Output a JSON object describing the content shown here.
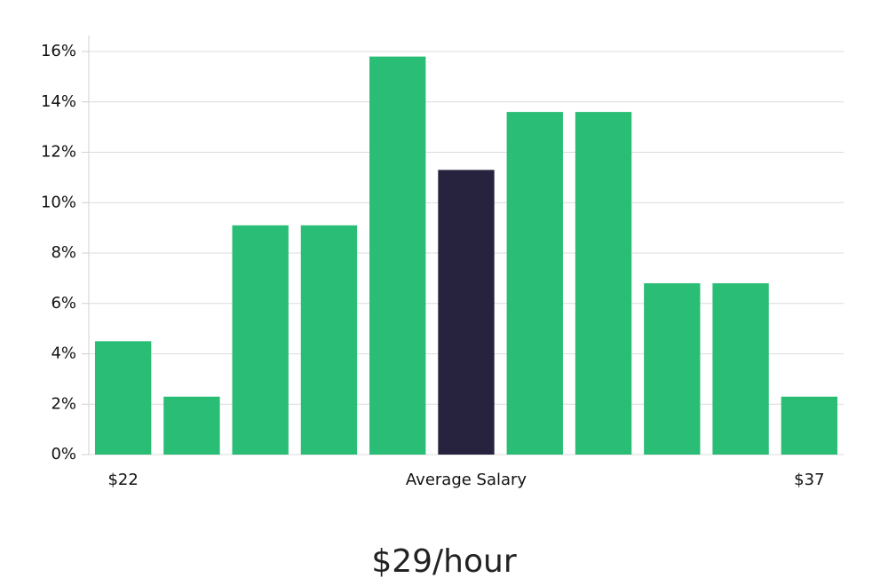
{
  "chart_data": {
    "type": "bar",
    "subtitle": "$29/hour",
    "categories": [
      "$22",
      null,
      null,
      null,
      null,
      "Average Salary",
      null,
      null,
      null,
      null,
      "$37"
    ],
    "values": [
      4.5,
      2.3,
      9.1,
      9.1,
      15.8,
      11.3,
      13.6,
      13.6,
      6.8,
      6.8,
      2.3
    ],
    "colors": [
      "#2abd75",
      "#2abd75",
      "#2abd75",
      "#2abd75",
      "#2abd75",
      "#27233f",
      "#2abd75",
      "#2abd75",
      "#2abd75",
      "#2abd75",
      "#2abd75"
    ],
    "ylim": [
      0,
      16.6
    ],
    "yticks": [
      {
        "value": 0,
        "label": "0%"
      },
      {
        "value": 2,
        "label": "2%"
      },
      {
        "value": 4,
        "label": "4%"
      },
      {
        "value": 6,
        "label": "6%"
      },
      {
        "value": 8,
        "label": "8%"
      },
      {
        "value": 10,
        "label": "10%"
      },
      {
        "value": 12,
        "label": "12%"
      },
      {
        "value": 14,
        "label": "14%"
      },
      {
        "value": 16,
        "label": "16%"
      }
    ],
    "grid": true
  }
}
